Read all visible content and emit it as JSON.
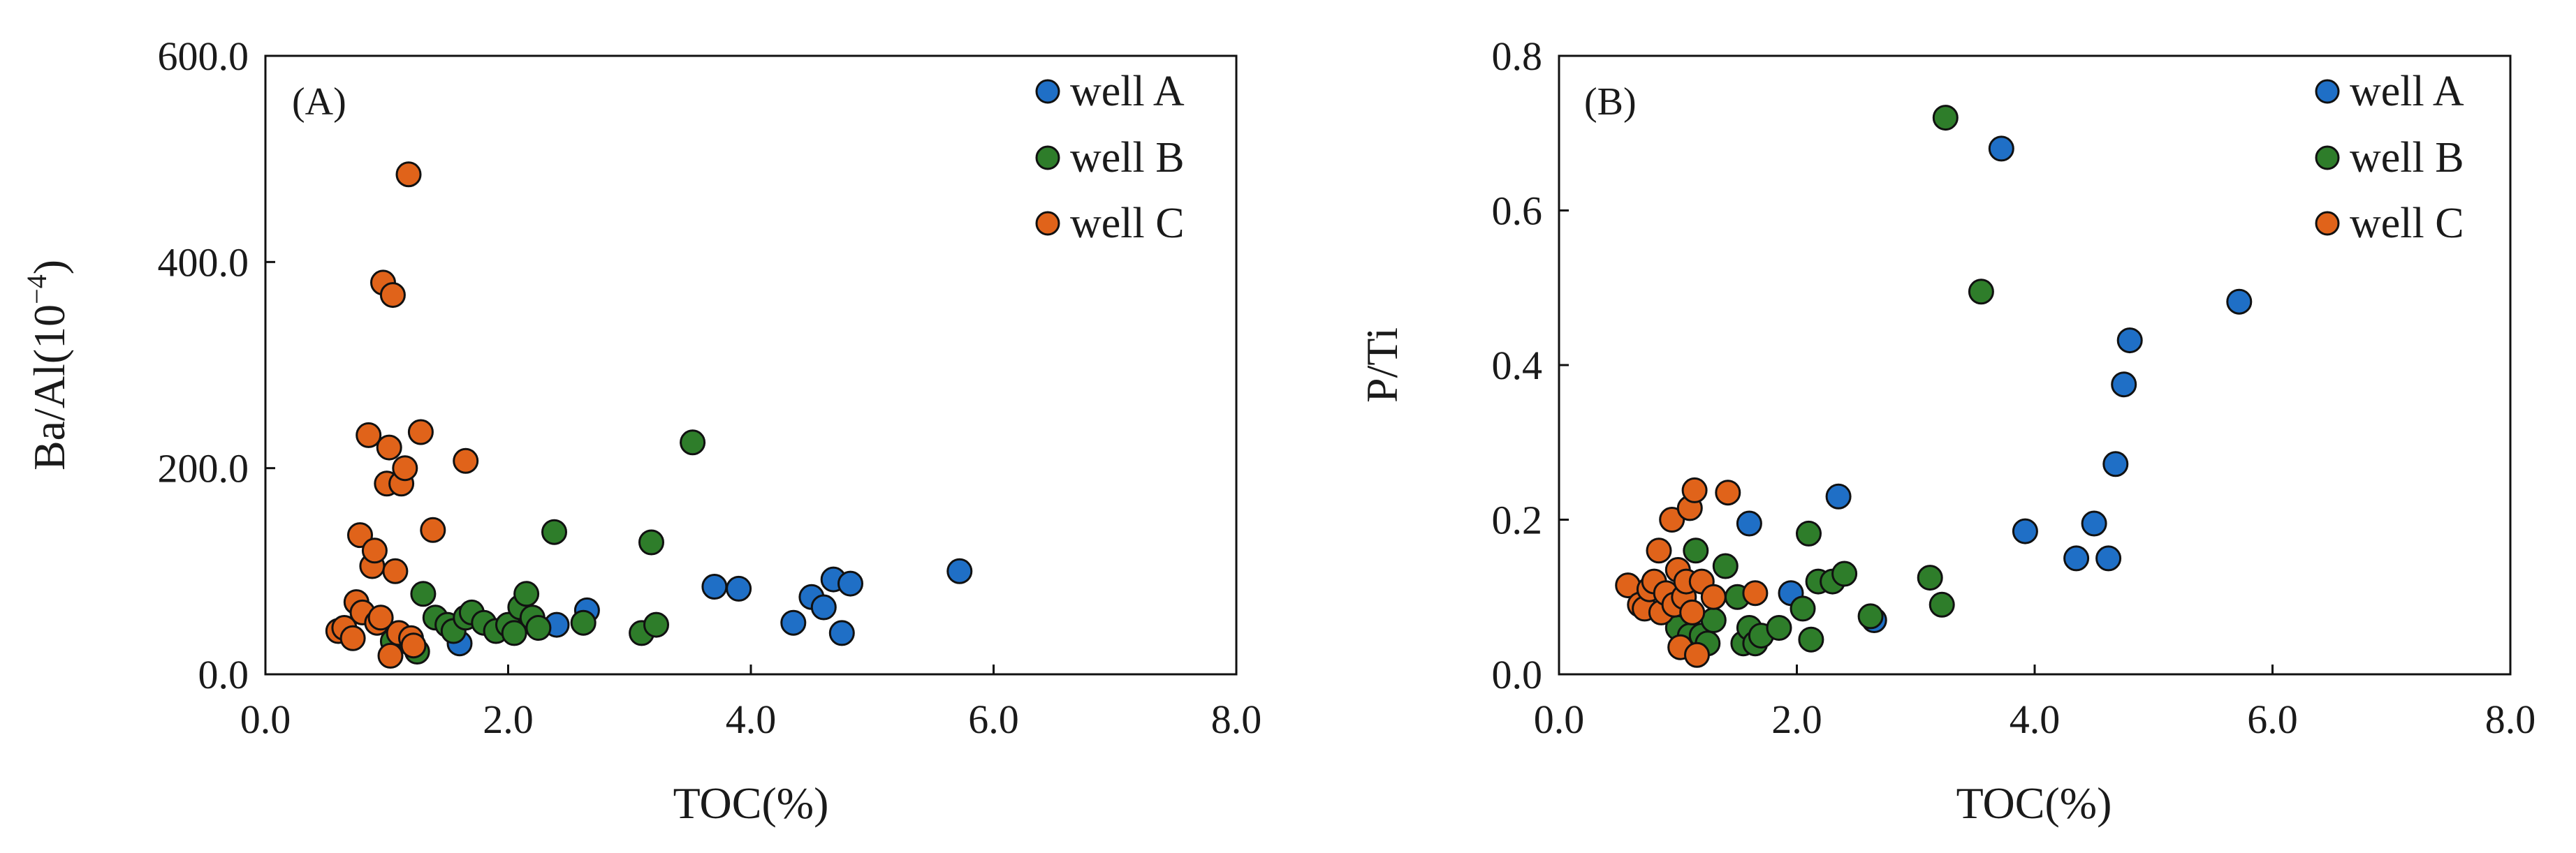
{
  "figure": {
    "colors": {
      "well_a": "#1f6fc6",
      "well_b": "#2e7d2a",
      "well_c": "#e0631a",
      "marker_edge": "#111111",
      "axis": "#111111"
    }
  },
  "chart_data": [
    {
      "type": "scatter",
      "panel_label": "(A)",
      "title": "",
      "xlabel": "TOC(%)",
      "ylabel": "Ba/Al(10",
      "ylabel_exponent": "−4",
      "ylabel_close": ")",
      "xlim": [
        0,
        8
      ],
      "ylim": [
        0,
        600
      ],
      "xticks": [
        "0.0",
        "2.0",
        "4.0",
        "6.0",
        "8.0"
      ],
      "yticks": [
        "0.0",
        "200.0",
        "400.0",
        "600.0"
      ],
      "x_tick_values": [
        0,
        2,
        4,
        6,
        8
      ],
      "y_tick_values": [
        0,
        200,
        400,
        600
      ],
      "legend": [
        "well A",
        "well B",
        "well C"
      ],
      "series": [
        {
          "name": "well A",
          "color": "#1f6fc6",
          "points": [
            [
              1.6,
              30
            ],
            [
              2.4,
              48
            ],
            [
              2.65,
              62
            ],
            [
              3.7,
              85
            ],
            [
              3.9,
              83
            ],
            [
              4.35,
              50
            ],
            [
              4.5,
              75
            ],
            [
              4.6,
              65
            ],
            [
              4.68,
              92
            ],
            [
              4.75,
              40
            ],
            [
              4.82,
              88
            ],
            [
              5.72,
              100
            ]
          ]
        },
        {
          "name": "well B",
          "color": "#2e7d2a",
          "points": [
            [
              1.05,
              32
            ],
            [
              1.2,
              30
            ],
            [
              1.25,
              22
            ],
            [
              1.3,
              78
            ],
            [
              1.4,
              55
            ],
            [
              1.5,
              48
            ],
            [
              1.55,
              42
            ],
            [
              1.65,
              55
            ],
            [
              1.7,
              60
            ],
            [
              1.8,
              50
            ],
            [
              1.9,
              42
            ],
            [
              2.0,
              48
            ],
            [
              2.05,
              40
            ],
            [
              2.1,
              65
            ],
            [
              2.15,
              78
            ],
            [
              2.2,
              55
            ],
            [
              2.25,
              45
            ],
            [
              2.38,
              138
            ],
            [
              2.62,
              50
            ],
            [
              3.1,
              40
            ],
            [
              3.18,
              128
            ],
            [
              3.22,
              48
            ],
            [
              3.52,
              225
            ]
          ]
        },
        {
          "name": "well C",
          "color": "#e0631a",
          "points": [
            [
              0.6,
              42
            ],
            [
              0.65,
              45
            ],
            [
              0.72,
              35
            ],
            [
              0.75,
              70
            ],
            [
              0.78,
              135
            ],
            [
              0.8,
              60
            ],
            [
              0.85,
              232
            ],
            [
              0.88,
              105
            ],
            [
              0.9,
              120
            ],
            [
              0.92,
              50
            ],
            [
              0.95,
              55
            ],
            [
              0.97,
              380
            ],
            [
              1.0,
              185
            ],
            [
              1.02,
              220
            ],
            [
              1.03,
              18
            ],
            [
              1.05,
              368
            ],
            [
              1.07,
              100
            ],
            [
              1.1,
              40
            ],
            [
              1.12,
              185
            ],
            [
              1.15,
              200
            ],
            [
              1.18,
              485
            ],
            [
              1.2,
              35
            ],
            [
              1.22,
              28
            ],
            [
              1.28,
              235
            ],
            [
              1.38,
              140
            ],
            [
              1.65,
              207
            ]
          ]
        }
      ]
    },
    {
      "type": "scatter",
      "panel_label": "(B)",
      "title": "",
      "xlabel": "TOC(%)",
      "ylabel": "P/Ti",
      "xlim": [
        0,
        8
      ],
      "ylim": [
        0,
        0.8
      ],
      "xticks": [
        "0.0",
        "2.0",
        "4.0",
        "6.0",
        "8.0"
      ],
      "yticks": [
        "0.0",
        "0.2",
        "0.4",
        "0.6",
        "0.8"
      ],
      "x_tick_values": [
        0,
        2,
        4,
        6,
        8
      ],
      "y_tick_values": [
        0,
        0.2,
        0.4,
        0.6,
        0.8
      ],
      "legend": [
        "well A",
        "well B",
        "well C"
      ],
      "series": [
        {
          "name": "well A",
          "color": "#1f6fc6",
          "points": [
            [
              1.6,
              0.195
            ],
            [
              1.95,
              0.105
            ],
            [
              2.35,
              0.23
            ],
            [
              2.65,
              0.07
            ],
            [
              3.72,
              0.68
            ],
            [
              3.92,
              0.185
            ],
            [
              4.35,
              0.15
            ],
            [
              4.5,
              0.195
            ],
            [
              4.62,
              0.15
            ],
            [
              4.68,
              0.272
            ],
            [
              4.75,
              0.375
            ],
            [
              4.8,
              0.432
            ],
            [
              5.72,
              0.482
            ]
          ]
        },
        {
          "name": "well B",
          "color": "#2e7d2a",
          "points": [
            [
              1.0,
              0.06
            ],
            [
              1.1,
              0.05
            ],
            [
              1.15,
              0.16
            ],
            [
              1.2,
              0.05
            ],
            [
              1.25,
              0.04
            ],
            [
              1.3,
              0.07
            ],
            [
              1.4,
              0.14
            ],
            [
              1.5,
              0.1
            ],
            [
              1.55,
              0.04
            ],
            [
              1.6,
              0.06
            ],
            [
              1.65,
              0.04
            ],
            [
              1.7,
              0.05
            ],
            [
              1.85,
              0.06
            ],
            [
              2.05,
              0.085
            ],
            [
              2.1,
              0.182
            ],
            [
              2.12,
              0.045
            ],
            [
              2.18,
              0.12
            ],
            [
              2.3,
              0.12
            ],
            [
              2.4,
              0.13
            ],
            [
              2.62,
              0.075
            ],
            [
              3.12,
              0.125
            ],
            [
              3.22,
              0.09
            ],
            [
              3.25,
              0.72
            ],
            [
              3.55,
              0.495
            ]
          ]
        },
        {
          "name": "well C",
          "color": "#e0631a",
          "points": [
            [
              0.58,
              0.115
            ],
            [
              0.68,
              0.09
            ],
            [
              0.72,
              0.085
            ],
            [
              0.76,
              0.11
            ],
            [
              0.8,
              0.12
            ],
            [
              0.84,
              0.16
            ],
            [
              0.86,
              0.08
            ],
            [
              0.9,
              0.105
            ],
            [
              0.95,
              0.2
            ],
            [
              0.97,
              0.09
            ],
            [
              1.0,
              0.135
            ],
            [
              1.02,
              0.035
            ],
            [
              1.05,
              0.1
            ],
            [
              1.07,
              0.12
            ],
            [
              1.1,
              0.215
            ],
            [
              1.12,
              0.08
            ],
            [
              1.14,
              0.238
            ],
            [
              1.16,
              0.025
            ],
            [
              1.2,
              0.12
            ],
            [
              1.3,
              0.1
            ],
            [
              1.42,
              0.235
            ],
            [
              1.65,
              0.105
            ]
          ]
        }
      ]
    }
  ]
}
